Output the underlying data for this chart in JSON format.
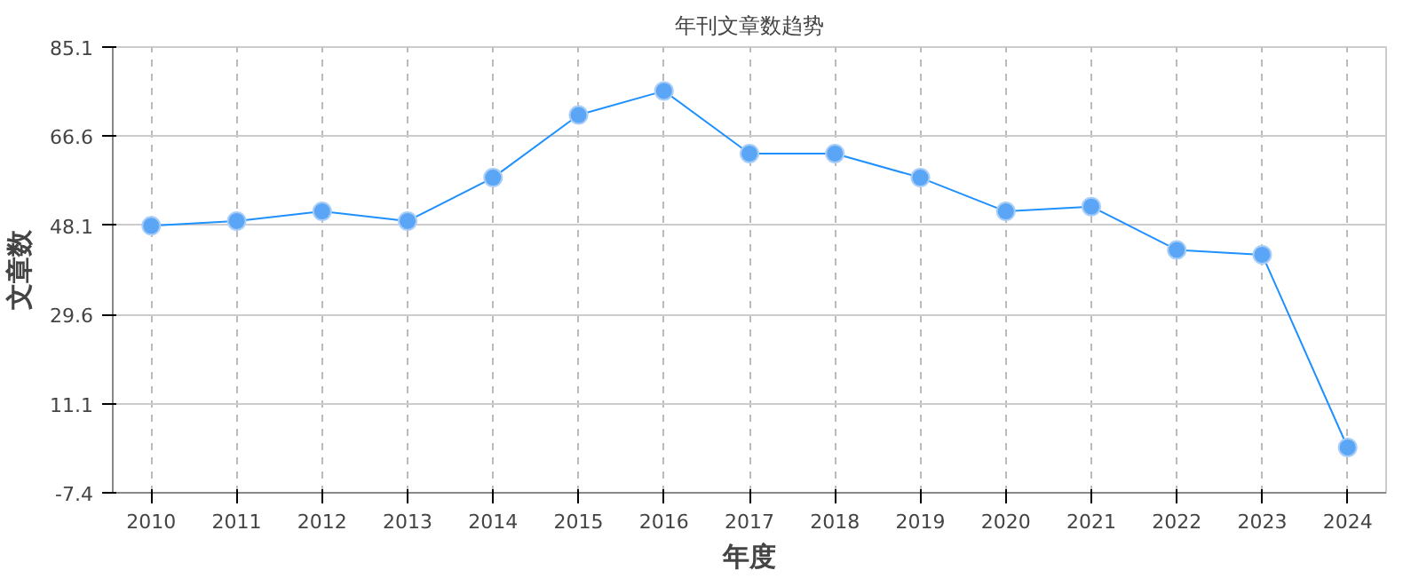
{
  "chart_data": {
    "type": "line",
    "title": "年刊文章数趋势",
    "xlabel": "年度",
    "ylabel": "文章数",
    "categories": [
      "2010",
      "2011",
      "2012",
      "2013",
      "2014",
      "2015",
      "2016",
      "2017",
      "2018",
      "2019",
      "2020",
      "2021",
      "2022",
      "2023",
      "2024"
    ],
    "series": [
      {
        "color": "#1e90ff",
        "values": [
          48,
          49,
          51,
          49,
          58,
          71,
          76,
          63,
          63,
          58,
          51,
          52,
          43,
          42,
          2
        ]
      }
    ],
    "ylim": [
      -7.4,
      85.1
    ],
    "yticks": [
      -7.4,
      11.1,
      29.6,
      48.1,
      66.6,
      85.1
    ],
    "grid": true,
    "marker": "circle",
    "line_style": "solid"
  }
}
